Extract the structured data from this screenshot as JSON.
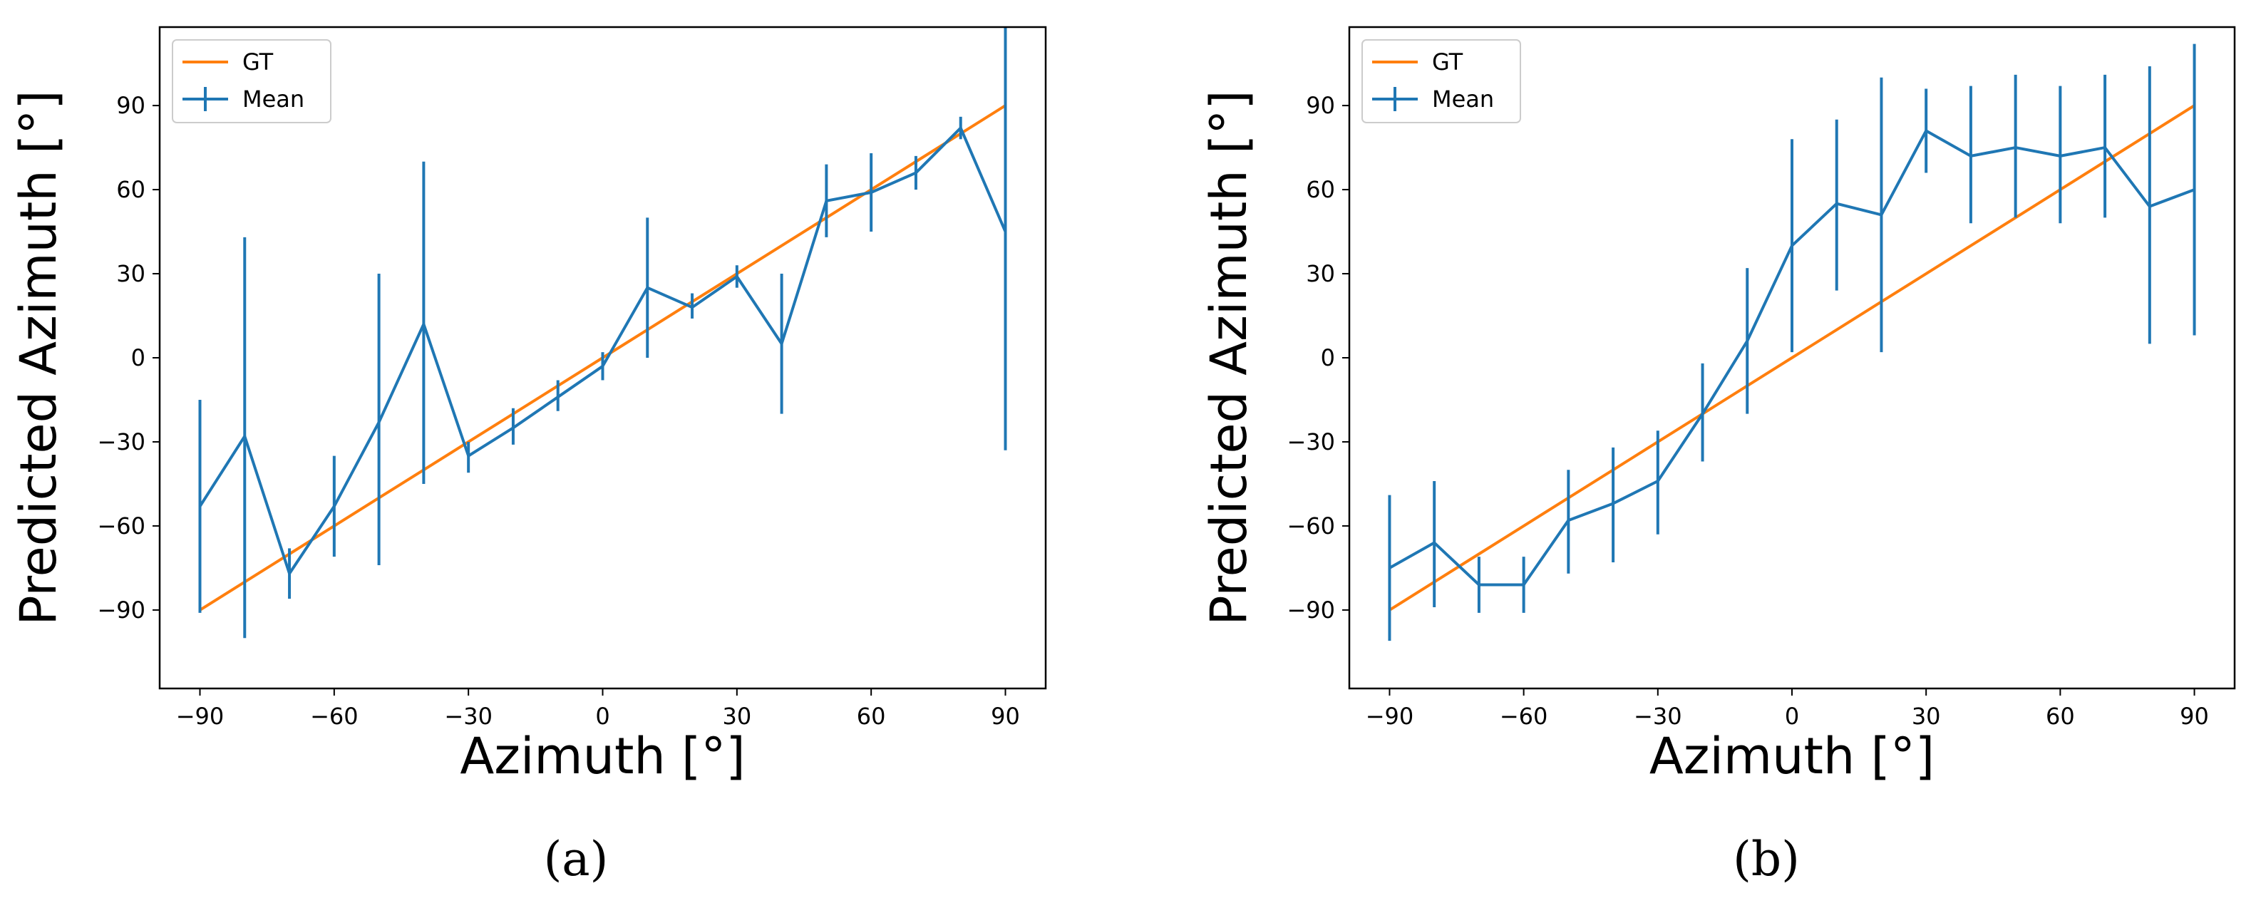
{
  "chart_data": [
    {
      "type": "line",
      "panel": "(a)",
      "xlabel": "Azimuth [°]",
      "ylabel": "Predicted Azimuth [°]",
      "xlim": [
        -99,
        99
      ],
      "ylim": [
        -118,
        118
      ],
      "xticks": [
        -90,
        -60,
        -30,
        0,
        30,
        60,
        90
      ],
      "yticks": [
        -90,
        -60,
        -30,
        0,
        30,
        60,
        90
      ],
      "xtick_labels": [
        "−90",
        "−60",
        "−30",
        "0",
        "30",
        "60",
        "90"
      ],
      "ytick_labels": [
        "−90",
        "−60",
        "−30",
        "0",
        "30",
        "60",
        "90"
      ],
      "legend": [
        "GT",
        "Mean"
      ],
      "legend_location": "upper-left",
      "x": [
        -90,
        -80,
        -70,
        -60,
        -50,
        -40,
        -30,
        -20,
        -10,
        0,
        10,
        20,
        30,
        40,
        50,
        60,
        70,
        80,
        90
      ],
      "series": [
        {
          "name": "GT",
          "color": "#ff7f0e",
          "values": [
            -90,
            -80,
            -70,
            -60,
            -50,
            -40,
            -30,
            -20,
            -10,
            0,
            10,
            20,
            30,
            40,
            50,
            60,
            70,
            80,
            90
          ]
        },
        {
          "name": "Mean",
          "color": "#1f77b4",
          "values": [
            -53,
            -28,
            -77,
            -53,
            -23,
            12,
            -35,
            -25,
            -14,
            -3,
            25,
            18,
            29,
            5,
            56,
            59,
            66,
            82,
            45
          ],
          "err_low": [
            -91,
            -100,
            -86,
            -71,
            -74,
            -45,
            -41,
            -31,
            -19,
            -8,
            0,
            14,
            25,
            -20,
            43,
            45,
            60,
            78,
            -33
          ],
          "err_high": [
            -15,
            43,
            -68,
            -35,
            30,
            70,
            -30,
            -18,
            -8,
            2,
            50,
            23,
            33,
            30,
            69,
            73,
            72,
            86,
            118
          ]
        }
      ]
    },
    {
      "type": "line",
      "panel": "(b)",
      "xlabel": "Azimuth [°]",
      "ylabel": "Predicted Azimuth [°]",
      "xlim": [
        -99,
        99
      ],
      "ylim": [
        -118,
        118
      ],
      "xticks": [
        -90,
        -60,
        -30,
        0,
        30,
        60,
        90
      ],
      "yticks": [
        -90,
        -60,
        -30,
        0,
        30,
        60,
        90
      ],
      "xtick_labels": [
        "−90",
        "−60",
        "−30",
        "0",
        "30",
        "60",
        "90"
      ],
      "ytick_labels": [
        "−90",
        "−60",
        "−30",
        "0",
        "30",
        "60",
        "90"
      ],
      "legend": [
        "GT",
        "Mean"
      ],
      "legend_location": "upper-left",
      "x": [
        -90,
        -80,
        -70,
        -60,
        -50,
        -40,
        -30,
        -20,
        -10,
        0,
        10,
        20,
        30,
        40,
        50,
        60,
        70,
        80,
        90
      ],
      "series": [
        {
          "name": "GT",
          "color": "#ff7f0e",
          "values": [
            -90,
            -80,
            -70,
            -60,
            -50,
            -40,
            -30,
            -20,
            -10,
            0,
            10,
            20,
            30,
            40,
            50,
            60,
            70,
            80,
            90
          ]
        },
        {
          "name": "Mean",
          "color": "#1f77b4",
          "values": [
            -75,
            -66,
            -81,
            -81,
            -58,
            -52,
            -44,
            -20,
            6,
            40,
            55,
            51,
            81,
            72,
            75,
            72,
            75,
            54,
            60
          ],
          "err_low": [
            -101,
            -89,
            -91,
            -91,
            -77,
            -73,
            -63,
            -37,
            -20,
            2,
            24,
            2,
            66,
            48,
            50,
            48,
            50,
            5,
            8
          ],
          "err_high": [
            -49,
            -44,
            -71,
            -71,
            -40,
            -32,
            -26,
            -2,
            32,
            78,
            85,
            100,
            96,
            97,
            101,
            97,
            101,
            104,
            112
          ]
        }
      ]
    }
  ]
}
